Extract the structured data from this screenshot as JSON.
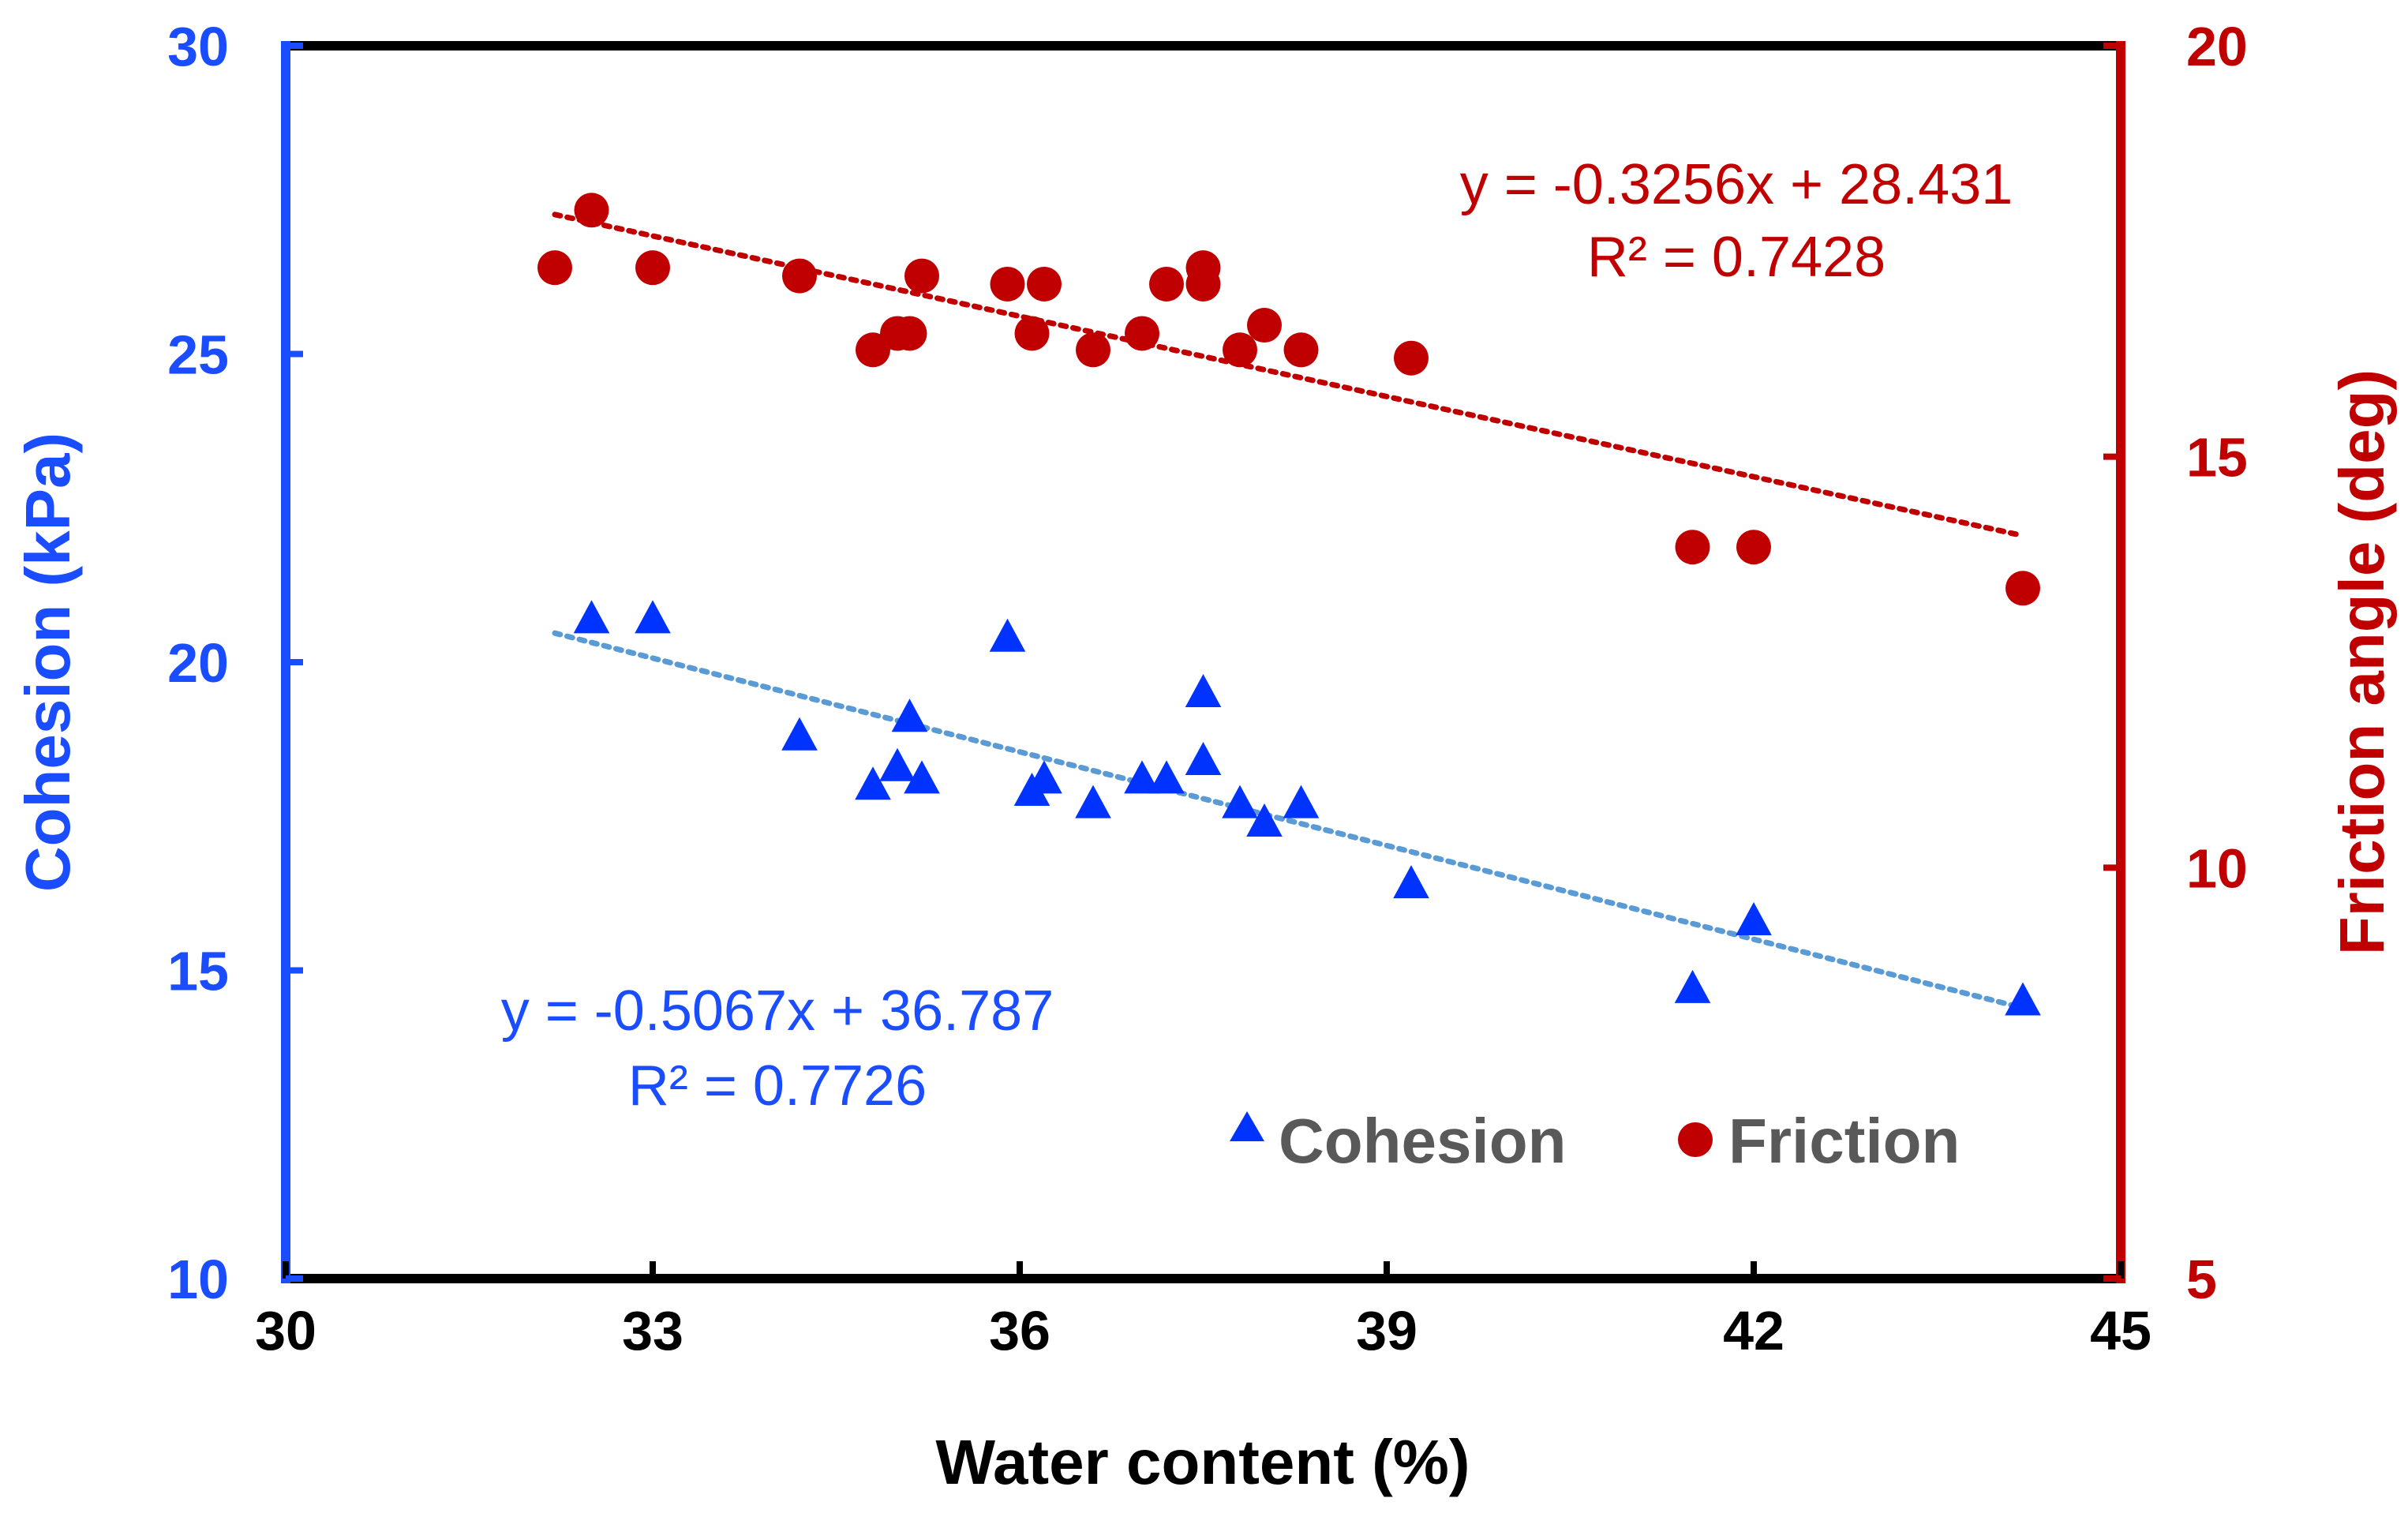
{
  "chart_data": {
    "type": "scatter",
    "xlabel": "Water content (%)",
    "ylabel_left": "Cohesion (kPa)",
    "ylabel_right": "Friction angle (deg)",
    "xlim": [
      30,
      45
    ],
    "ylim_left": [
      10,
      30
    ],
    "ylim_right": [
      5,
      20
    ],
    "x_ticks": [
      "30",
      "33",
      "36",
      "39",
      "42",
      "45"
    ],
    "y_left_ticks": [
      "10",
      "15",
      "20",
      "25",
      "30"
    ],
    "y_right_ticks": [
      "5",
      "10",
      "15",
      "20"
    ],
    "colors": {
      "cohesion": "#0033ff",
      "friction": "#c00000",
      "cohesion_trend": "#5b9bd5",
      "friction_trend": "#c00000",
      "left_axis": "#1a4dff",
      "right_axis": "#c00000",
      "frame": "#000000"
    },
    "series": [
      {
        "name": "Cohesion",
        "axis": "left",
        "marker": "triangle",
        "x": [
          32.5,
          33.0,
          34.2,
          34.8,
          35.0,
          35.1,
          35.2,
          35.9,
          36.1,
          36.2,
          36.6,
          37.0,
          37.2,
          37.5,
          37.5,
          37.8,
          38.0,
          38.3,
          39.2,
          41.5,
          42.0,
          44.2
        ],
        "y": [
          20.7,
          20.7,
          18.8,
          18.0,
          18.3,
          19.1,
          18.1,
          20.4,
          17.9,
          18.1,
          17.7,
          18.1,
          18.1,
          19.5,
          18.4,
          17.7,
          17.4,
          17.7,
          16.4,
          14.7,
          15.8,
          14.5
        ]
      },
      {
        "name": "Friction",
        "axis": "right",
        "marker": "circle",
        "x": [
          32.2,
          32.5,
          33.0,
          34.2,
          34.8,
          35.0,
          35.1,
          35.2,
          35.9,
          36.1,
          36.2,
          36.6,
          37.0,
          37.2,
          37.5,
          37.5,
          37.8,
          38.0,
          38.3,
          39.2,
          41.5,
          42.0,
          44.2
        ],
        "y": [
          17.3,
          18.0,
          17.3,
          17.2,
          16.3,
          16.5,
          16.5,
          17.2,
          17.1,
          16.5,
          17.1,
          16.3,
          16.5,
          17.1,
          17.3,
          17.1,
          16.3,
          16.6,
          16.3,
          16.2,
          13.9,
          13.9,
          13.4
        ]
      }
    ],
    "trendlines": [
      {
        "series": "Cohesion",
        "slope": -0.5067,
        "intercept": 36.787,
        "x_range": [
          32.2,
          44.2
        ],
        "equation": "y = -0.5067x + 36.787",
        "r2": "R² = 0.7726"
      },
      {
        "series": "Friction",
        "slope": -0.3256,
        "intercept": 28.431,
        "x_range": [
          32.2,
          44.2
        ],
        "equation": "y = -0.3256x + 28.431",
        "r2": "R² = 0.7428"
      }
    ],
    "legend": [
      "Cohesion",
      "Friction"
    ],
    "legend_position": "bottom-right"
  }
}
